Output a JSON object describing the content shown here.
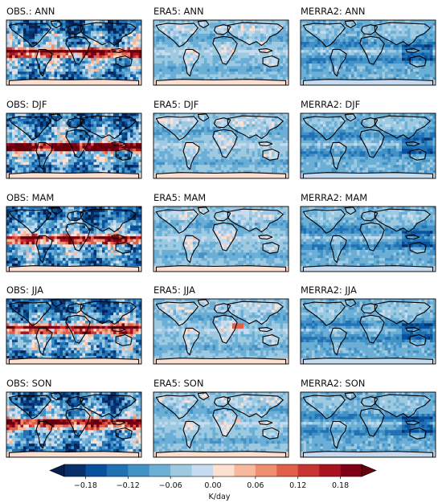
{
  "chart_data": {
    "type": "heatmap",
    "projection": "global map",
    "panels": [
      {
        "title": "OBS.: ANN",
        "source": "OBS",
        "season": "ANN",
        "pattern": "obs"
      },
      {
        "title": "ERA5: ANN",
        "source": "ERA5",
        "season": "ANN",
        "pattern": "era5"
      },
      {
        "title": "MERRA2: ANN",
        "source": "MERRA2",
        "season": "ANN",
        "pattern": "merra2"
      },
      {
        "title": "OBS: DJF",
        "source": "OBS",
        "season": "DJF",
        "pattern": "obs"
      },
      {
        "title": "ERA5: DJF",
        "source": "ERA5",
        "season": "DJF",
        "pattern": "era5"
      },
      {
        "title": "MERRA2: DJF",
        "source": "MERRA2",
        "season": "DJF",
        "pattern": "merra2"
      },
      {
        "title": "OBS: MAM",
        "source": "OBS",
        "season": "MAM",
        "pattern": "obs"
      },
      {
        "title": "ERA5: MAM",
        "source": "ERA5",
        "season": "MAM",
        "pattern": "era5"
      },
      {
        "title": "MERRA2: MAM",
        "source": "MERRA2",
        "season": "MAM",
        "pattern": "merra2"
      },
      {
        "title": "OBS: JJA",
        "source": "OBS",
        "season": "JJA",
        "pattern": "obs"
      },
      {
        "title": "ERA5: JJA",
        "source": "ERA5",
        "season": "JJA",
        "pattern": "era5"
      },
      {
        "title": "MERRA2: JJA",
        "source": "MERRA2",
        "season": "JJA",
        "pattern": "merra2"
      },
      {
        "title": "OBS: SON",
        "source": "OBS",
        "season": "SON",
        "pattern": "obs"
      },
      {
        "title": "ERA5: SON",
        "source": "ERA5",
        "season": "SON",
        "pattern": "era5"
      },
      {
        "title": "MERRA2: SON",
        "source": "MERRA2",
        "season": "SON",
        "pattern": "merra2"
      }
    ],
    "colorbar": {
      "units": "K/day",
      "vmin": -0.21,
      "vmax": 0.21,
      "extend": "both",
      "levels": [
        -0.21,
        -0.18,
        -0.15,
        -0.12,
        -0.09,
        -0.06,
        -0.03,
        0.0,
        0.03,
        0.06,
        0.09,
        0.12,
        0.15,
        0.18,
        0.21
      ],
      "ticks": [
        -0.18,
        -0.12,
        -0.06,
        0.0,
        0.06,
        0.12,
        0.18
      ],
      "tick_labels": [
        "−0.18",
        "−0.12",
        "−0.06",
        "0.00",
        "0.06",
        "0.12",
        "0.18"
      ],
      "colors": [
        "#08306b",
        "#08519c",
        "#2171b5",
        "#4292c6",
        "#6baed6",
        "#9ecae1",
        "#c6dbef",
        "#fde0d2",
        "#f7b89c",
        "#f08f70",
        "#e0604b",
        "#c83431",
        "#a71420",
        "#7f0015"
      ],
      "under_color": "#06214f",
      "over_color": "#67000d"
    }
  }
}
